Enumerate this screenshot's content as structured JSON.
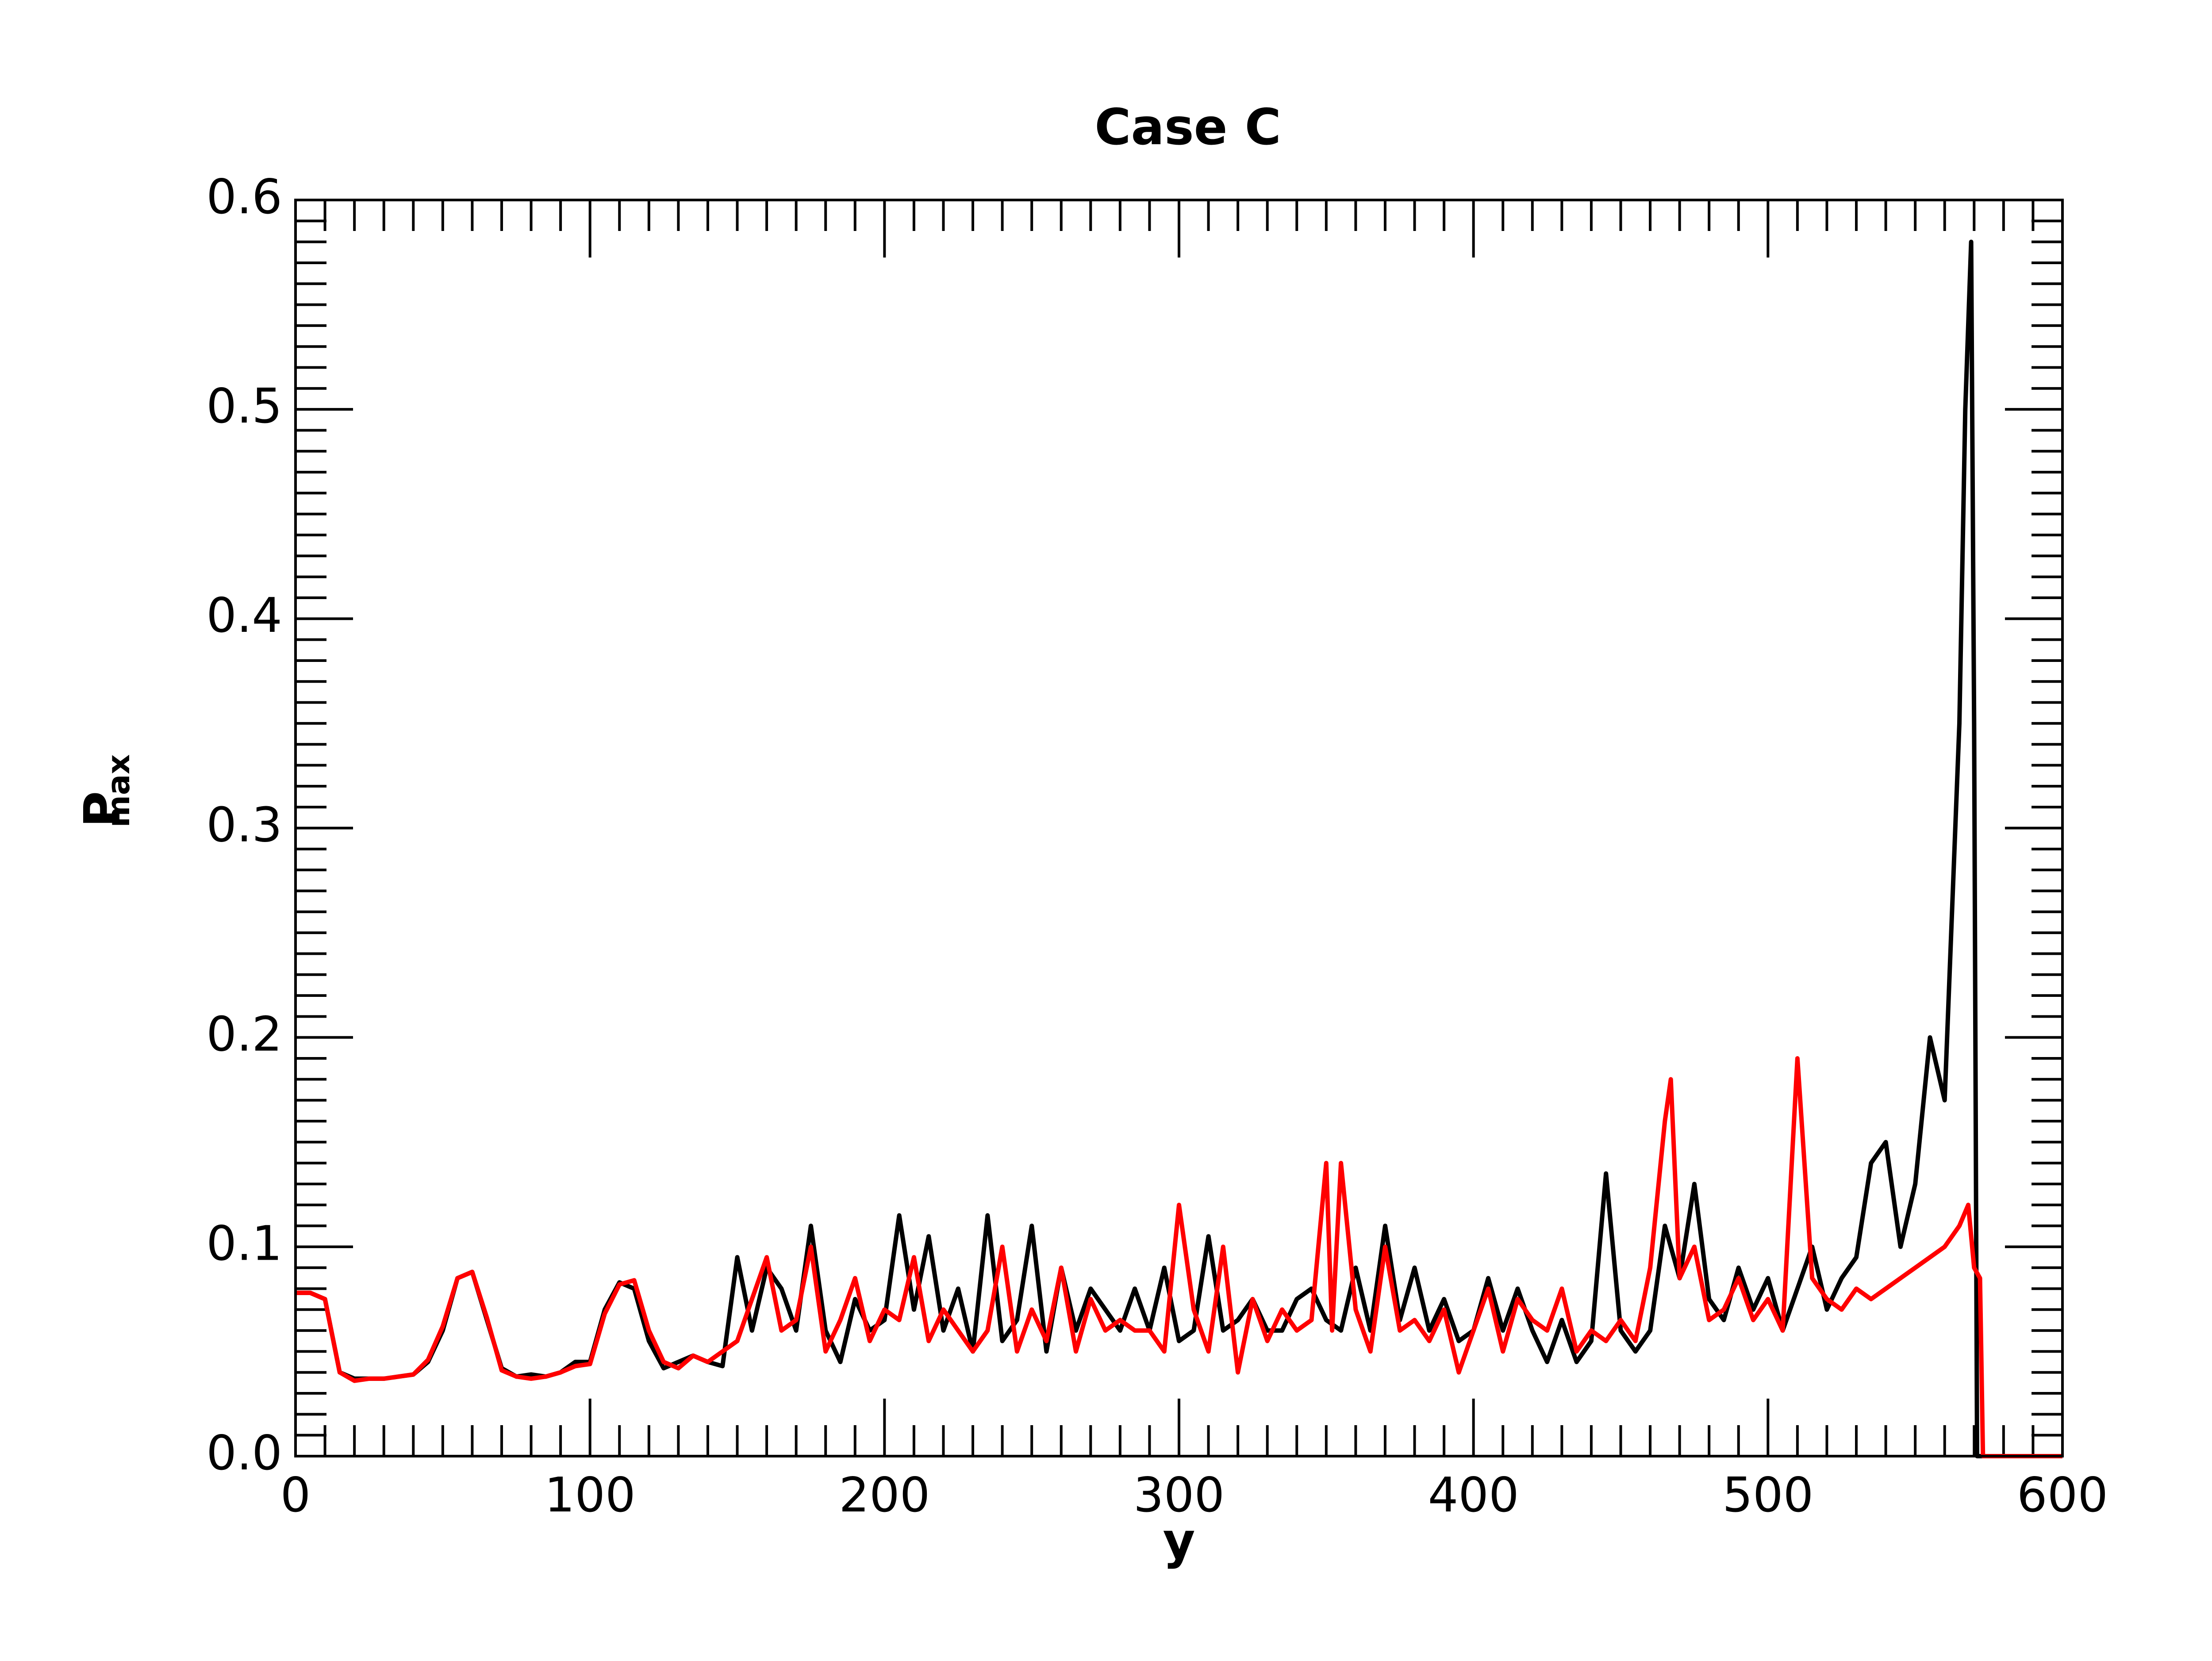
{
  "chart_data": {
    "type": "line",
    "title": "Case C",
    "xlabel": "y",
    "ylabel": {
      "text": "P",
      "subscript": "max"
    },
    "xlim": [
      0,
      600
    ],
    "ylim": [
      0,
      0.6
    ],
    "xticks": [
      0,
      100,
      200,
      300,
      400,
      500,
      600
    ],
    "yticks": [
      {
        "value": 0,
        "label": "0.0"
      },
      0.1,
      0.2,
      0.3,
      0.4,
      0.5,
      0.6
    ],
    "minor_divisions": 10,
    "grid": false,
    "series": [
      {
        "color": "#000000",
        "x": [
          0,
          5,
          10,
          15,
          20,
          25,
          30,
          35,
          40,
          45,
          50,
          55,
          60,
          65,
          70,
          75,
          80,
          85,
          90,
          95,
          100,
          105,
          110,
          115,
          120,
          125,
          130,
          135,
          140,
          145,
          150,
          155,
          160,
          165,
          170,
          175,
          180,
          185,
          190,
          195,
          200,
          205,
          210,
          215,
          220,
          225,
          230,
          235,
          240,
          245,
          250,
          255,
          260,
          265,
          270,
          275,
          280,
          285,
          290,
          295,
          300,
          305,
          310,
          315,
          320,
          325,
          330,
          335,
          340,
          345,
          350,
          355,
          360,
          365,
          370,
          375,
          380,
          385,
          390,
          395,
          400,
          405,
          410,
          415,
          420,
          425,
          430,
          435,
          440,
          445,
          450,
          455,
          460,
          465,
          470,
          475,
          480,
          485,
          490,
          495,
          500,
          505,
          510,
          515,
          520,
          525,
          530,
          535,
          540,
          545,
          550,
          555,
          560,
          565,
          567,
          569,
          570,
          571,
          575,
          580,
          590,
          600
        ],
        "values": [
          0.078,
          0.078,
          0.075,
          0.04,
          0.037,
          0.037,
          0.037,
          0.038,
          0.039,
          0.045,
          0.06,
          0.085,
          0.088,
          0.065,
          0.042,
          0.038,
          0.039,
          0.038,
          0.04,
          0.045,
          0.045,
          0.07,
          0.083,
          0.08,
          0.055,
          0.042,
          0.045,
          0.048,
          0.045,
          0.043,
          0.095,
          0.06,
          0.09,
          0.08,
          0.06,
          0.11,
          0.06,
          0.045,
          0.075,
          0.06,
          0.065,
          0.115,
          0.07,
          0.105,
          0.06,
          0.08,
          0.05,
          0.115,
          0.055,
          0.065,
          0.11,
          0.05,
          0.09,
          0.06,
          0.08,
          0.07,
          0.06,
          0.08,
          0.06,
          0.09,
          0.055,
          0.06,
          0.105,
          0.06,
          0.065,
          0.075,
          0.06,
          0.06,
          0.075,
          0.08,
          0.065,
          0.06,
          0.09,
          0.06,
          0.11,
          0.065,
          0.09,
          0.06,
          0.075,
          0.055,
          0.06,
          0.085,
          0.06,
          0.08,
          0.06,
          0.045,
          0.065,
          0.045,
          0.055,
          0.135,
          0.06,
          0.05,
          0.06,
          0.11,
          0.085,
          0.13,
          0.075,
          0.065,
          0.09,
          0.07,
          0.085,
          0.06,
          0.08,
          0.1,
          0.07,
          0.085,
          0.095,
          0.14,
          0.15,
          0.1,
          0.13,
          0.2,
          0.17,
          0.35,
          0.5,
          0.58,
          0.35,
          0,
          0,
          0,
          0,
          0
        ]
      },
      {
        "color": "#ff0000",
        "x": [
          0,
          5,
          10,
          15,
          20,
          25,
          30,
          35,
          40,
          45,
          50,
          55,
          60,
          65,
          70,
          75,
          80,
          85,
          90,
          95,
          100,
          105,
          110,
          115,
          120,
          125,
          130,
          135,
          140,
          145,
          150,
          155,
          160,
          165,
          170,
          175,
          180,
          185,
          190,
          195,
          200,
          205,
          210,
          215,
          220,
          225,
          230,
          235,
          240,
          245,
          250,
          255,
          260,
          265,
          270,
          275,
          280,
          285,
          290,
          295,
          300,
          305,
          310,
          315,
          320,
          325,
          330,
          335,
          340,
          345,
          350,
          352,
          355,
          360,
          365,
          370,
          375,
          380,
          385,
          390,
          395,
          400,
          405,
          410,
          415,
          420,
          425,
          430,
          435,
          440,
          445,
          450,
          455,
          460,
          465,
          467,
          470,
          475,
          480,
          485,
          490,
          495,
          500,
          505,
          510,
          515,
          520,
          525,
          530,
          535,
          540,
          545,
          550,
          555,
          560,
          565,
          568,
          570,
          572,
          573,
          580,
          590,
          600
        ],
        "values": [
          0.078,
          0.078,
          0.075,
          0.04,
          0.036,
          0.037,
          0.037,
          0.038,
          0.039,
          0.046,
          0.062,
          0.085,
          0.088,
          0.066,
          0.041,
          0.038,
          0.037,
          0.038,
          0.04,
          0.043,
          0.044,
          0.068,
          0.082,
          0.084,
          0.06,
          0.045,
          0.042,
          0.048,
          0.045,
          0.05,
          0.055,
          0.075,
          0.095,
          0.06,
          0.065,
          0.1,
          0.05,
          0.065,
          0.085,
          0.055,
          0.07,
          0.065,
          0.095,
          0.055,
          0.07,
          0.06,
          0.05,
          0.06,
          0.1,
          0.05,
          0.07,
          0.055,
          0.09,
          0.05,
          0.075,
          0.06,
          0.065,
          0.06,
          0.06,
          0.05,
          0.12,
          0.07,
          0.05,
          0.1,
          0.04,
          0.075,
          0.055,
          0.07,
          0.06,
          0.065,
          0.14,
          0.06,
          0.14,
          0.07,
          0.05,
          0.1,
          0.06,
          0.065,
          0.055,
          0.07,
          0.04,
          0.06,
          0.08,
          0.05,
          0.075,
          0.065,
          0.06,
          0.08,
          0.05,
          0.06,
          0.055,
          0.065,
          0.055,
          0.09,
          0.16,
          0.18,
          0.085,
          0.1,
          0.065,
          0.07,
          0.085,
          0.065,
          0.075,
          0.06,
          0.19,
          0.085,
          0.075,
          0.07,
          0.08,
          0.075,
          0.08,
          0.085,
          0.09,
          0.095,
          0.1,
          0.11,
          0.12,
          0.09,
          0.085,
          0,
          0,
          0,
          0
        ]
      }
    ]
  }
}
